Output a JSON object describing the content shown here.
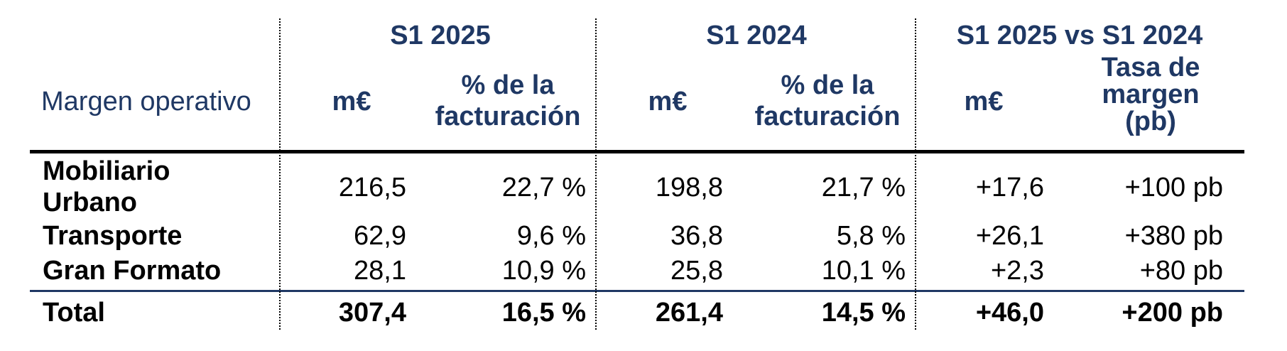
{
  "header": {
    "row_label_title": "Margen operativo",
    "groups": [
      {
        "title": "S1 2025",
        "cols": [
          "m€",
          "% de la facturación"
        ]
      },
      {
        "title": "S1 2024",
        "cols": [
          "m€",
          "% de la facturación"
        ]
      },
      {
        "title": "S1 2025 vs S1 2024",
        "cols": [
          "m€",
          "Tasa de margen (pb)"
        ]
      }
    ]
  },
  "rows": [
    {
      "label": "Mobiliario Urbano",
      "values": [
        "216,5",
        "22,7 %",
        "198,8",
        "21,7 %",
        "+17,6",
        "+100 pb"
      ]
    },
    {
      "label": "Transporte",
      "values": [
        "62,9",
        "9,6 %",
        "36,8",
        "5,8 %",
        "+26,1",
        "+380 pb"
      ]
    },
    {
      "label": "Gran Formato",
      "values": [
        "28,1",
        "10,9 %",
        "25,8",
        "10,1 %",
        "+2,3",
        "+80 pb"
      ]
    }
  ],
  "total": {
    "label": "Total",
    "values": [
      "307,4",
      "16,5 %",
      "261,4",
      "14,5 %",
      "+46,0",
      "+200 pb"
    ]
  }
}
